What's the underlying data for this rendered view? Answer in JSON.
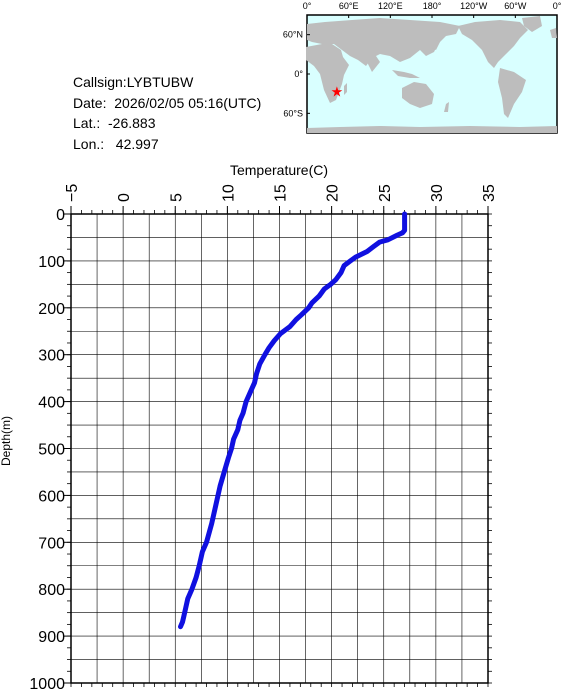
{
  "info": {
    "callsign": "Callsign:LYBTUBW",
    "date": "Date:  2026/02/05 05:16(UTC)",
    "lat": "Lat.:  -26.883",
    "lon": "Lon.:   42.997"
  },
  "map": {
    "lon_labels": [
      "0°",
      "60°E",
      "120°E",
      "180°",
      "120°W",
      "60°W",
      "0°"
    ],
    "lat_labels": [
      "60°N",
      "0°",
      "60°S"
    ],
    "ocean_color": "#d9ffff",
    "land_color": "#bdbdbd",
    "marker_color": "#ff0000",
    "marker": {
      "lat": -26.883,
      "lon": 42.997
    }
  },
  "chart_data": {
    "type": "line",
    "xlabel": "Temperature(C)",
    "ylabel": "Depth(m)",
    "xlim": [
      -5,
      35
    ],
    "ylim": [
      0,
      1000
    ],
    "y_inverted": true,
    "x_ticks": [
      "-5",
      "0",
      "5",
      "10",
      "15",
      "20",
      "25",
      "30",
      "35"
    ],
    "y_ticks": [
      "0",
      "100",
      "200",
      "300",
      "400",
      "500",
      "600",
      "700",
      "800",
      "900",
      "1000"
    ],
    "grid": true,
    "line_color": "#1010e0",
    "series": [
      {
        "x": [
          27.0,
          27.0,
          27.0,
          26.8,
          26.3,
          25.4,
          24.6,
          24.0,
          23.4,
          22.3,
          21.8,
          21.2,
          20.9,
          20.4,
          19.9,
          19.3,
          18.8,
          18.1,
          17.8,
          17.1,
          16.6,
          16.0,
          15.1,
          14.5,
          14.0,
          13.6,
          13.1,
          12.8,
          12.6,
          12.2,
          11.8,
          11.5,
          11.2,
          11.0,
          10.6,
          10.4,
          10.1,
          9.7,
          9.3,
          8.9,
          8.5,
          8.0,
          7.6,
          7.3,
          7.0,
          6.6,
          6.2,
          6.0,
          5.8,
          5.7,
          5.5
        ],
        "y": [
          0,
          20,
          35,
          40,
          45,
          55,
          60,
          70,
          80,
          92,
          100,
          110,
          125,
          140,
          150,
          160,
          175,
          190,
          200,
          215,
          225,
          240,
          255,
          270,
          285,
          300,
          320,
          340,
          360,
          380,
          400,
          425,
          440,
          460,
          480,
          500,
          520,
          550,
          580,
          620,
          660,
          700,
          720,
          750,
          775,
          800,
          820,
          840,
          860,
          870,
          880
        ]
      }
    ]
  }
}
